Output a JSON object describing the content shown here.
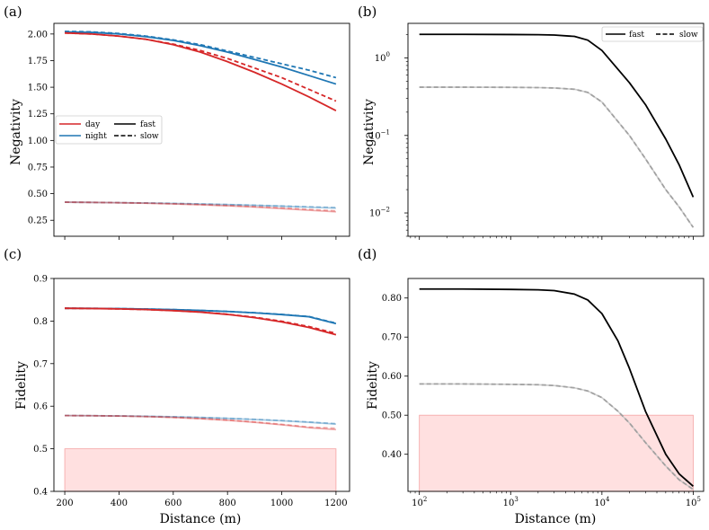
{
  "colors": {
    "day": "#d62728",
    "night": "#1f77b4",
    "fast": "#000000",
    "slow": "#999999",
    "shade": "#ffcccc"
  },
  "chart_data": [
    {
      "panel": "(a)",
      "type": "line",
      "xlabel": "",
      "ylabel": "Negativity",
      "xlim": [
        160,
        1250
      ],
      "ylim": [
        0.1,
        2.1
      ],
      "xticks": [
        200,
        400,
        600,
        800,
        1000,
        1200
      ],
      "xtick_labels": [],
      "yticks": [
        0.25,
        0.5,
        0.75,
        1.0,
        1.25,
        1.5,
        1.75,
        2.0
      ],
      "ytick_labels": [
        "0.25",
        "0.50",
        "0.75",
        "1.00",
        "1.25",
        "1.50",
        "1.75",
        "2.00"
      ],
      "legend": {
        "placement": "center-left",
        "entries": [
          "day",
          "night",
          "fast",
          "slow"
        ]
      },
      "x": [
        200,
        300,
        400,
        500,
        600,
        700,
        800,
        900,
        1000,
        1100,
        1200
      ],
      "series": [
        {
          "name": "night fast",
          "color": "night",
          "style": "solid",
          "values": [
            2.02,
            2.015,
            2.0,
            1.975,
            1.94,
            1.89,
            1.83,
            1.76,
            1.69,
            1.61,
            1.53
          ]
        },
        {
          "name": "night slow",
          "color": "night",
          "style": "dashed",
          "values": [
            2.025,
            2.02,
            2.005,
            1.98,
            1.945,
            1.9,
            1.84,
            1.78,
            1.72,
            1.66,
            1.59
          ]
        },
        {
          "name": "day fast",
          "color": "day",
          "style": "solid",
          "values": [
            2.01,
            2.0,
            1.98,
            1.95,
            1.9,
            1.83,
            1.74,
            1.64,
            1.53,
            1.41,
            1.28
          ]
        },
        {
          "name": "day slow",
          "color": "day",
          "style": "dashed",
          "values": [
            2.01,
            2.0,
            1.98,
            1.95,
            1.905,
            1.845,
            1.77,
            1.68,
            1.59,
            1.48,
            1.37
          ]
        },
        {
          "name": "night fast (low)",
          "color": "night",
          "style": "solid",
          "faded": true,
          "values": [
            0.42,
            0.418,
            0.415,
            0.412,
            0.408,
            0.403,
            0.397,
            0.39,
            0.382,
            0.373,
            0.365
          ]
        },
        {
          "name": "night slow (low)",
          "color": "night",
          "style": "dashed",
          "faded": true,
          "values": [
            0.42,
            0.418,
            0.416,
            0.413,
            0.409,
            0.404,
            0.398,
            0.392,
            0.385,
            0.377,
            0.37
          ]
        },
        {
          "name": "day fast (low)",
          "color": "day",
          "style": "solid",
          "faded": true,
          "values": [
            0.42,
            0.418,
            0.415,
            0.41,
            0.404,
            0.396,
            0.386,
            0.374,
            0.36,
            0.345,
            0.33
          ]
        },
        {
          "name": "day slow (low)",
          "color": "day",
          "style": "dashed",
          "faded": true,
          "values": [
            0.42,
            0.418,
            0.415,
            0.411,
            0.405,
            0.398,
            0.389,
            0.378,
            0.366,
            0.352,
            0.338
          ]
        }
      ]
    },
    {
      "panel": "(b)",
      "type": "line",
      "xscale": "log",
      "yscale": "log",
      "xlabel": "",
      "ylabel": "Negativity",
      "xlim": [
        75,
        130000
      ],
      "ylim": [
        0.005,
        2.8
      ],
      "xticks": [
        100,
        1000,
        10000,
        100000
      ],
      "xtick_labels": [],
      "yticks": [
        0.01,
        0.1,
        1
      ],
      "ytick_labels": [
        "10",
        "10",
        "10"
      ],
      "ytick_exponents": [
        "−2",
        "−1",
        "0"
      ],
      "legend": {
        "placement": "top-right",
        "entries": [
          "fast",
          "slow"
        ]
      },
      "x": [
        100,
        300,
        1000,
        2000,
        3000,
        5000,
        7000,
        10000,
        20000,
        30000,
        50000,
        70000,
        100000
      ],
      "series": [
        {
          "name": "fast",
          "color": "fast",
          "style": "solid",
          "values": [
            2.02,
            2.02,
            2.01,
            2.0,
            1.98,
            1.9,
            1.7,
            1.25,
            0.48,
            0.25,
            0.09,
            0.042,
            0.016
          ]
        },
        {
          "name": "slow",
          "color": "slow",
          "style": "dashed",
          "values": [
            0.42,
            0.42,
            0.418,
            0.415,
            0.41,
            0.395,
            0.36,
            0.27,
            0.1,
            0.05,
            0.02,
            0.012,
            0.0065
          ]
        }
      ]
    },
    {
      "panel": "(c)",
      "type": "line",
      "xlabel": "Distance (m)",
      "ylabel": "Fidelity",
      "xlim": [
        160,
        1250
      ],
      "ylim": [
        0.4,
        0.9
      ],
      "xticks": [
        200,
        400,
        600,
        800,
        1000,
        1200
      ],
      "xtick_labels": [
        "200",
        "400",
        "600",
        "800",
        "1000",
        "1200"
      ],
      "yticks": [
        0.4,
        0.5,
        0.6,
        0.7,
        0.8,
        0.9
      ],
      "ytick_labels": [
        "0.4",
        "0.5",
        "0.6",
        "0.7",
        "0.8",
        "0.9"
      ],
      "shaded_region": {
        "x": [
          200,
          1200
        ],
        "y": [
          0.4,
          0.5
        ]
      },
      "x": [
        200,
        300,
        400,
        500,
        600,
        700,
        800,
        900,
        1000,
        1100,
        1200
      ],
      "series": [
        {
          "name": "night fast",
          "color": "night",
          "style": "solid",
          "values": [
            0.83,
            0.8298,
            0.8292,
            0.8282,
            0.8268,
            0.825,
            0.8225,
            0.8193,
            0.8152,
            0.8102,
            0.794
          ]
        },
        {
          "name": "night slow",
          "color": "night",
          "style": "dashed",
          "values": [
            0.83,
            0.8298,
            0.8292,
            0.8282,
            0.8268,
            0.825,
            0.8226,
            0.8195,
            0.8155,
            0.8107,
            0.795
          ]
        },
        {
          "name": "day fast",
          "color": "day",
          "style": "solid",
          "values": [
            0.83,
            0.8295,
            0.8285,
            0.827,
            0.8245,
            0.821,
            0.8155,
            0.808,
            0.798,
            0.785,
            0.768
          ]
        },
        {
          "name": "day slow",
          "color": "day",
          "style": "dashed",
          "values": [
            0.83,
            0.8295,
            0.8285,
            0.827,
            0.8246,
            0.8212,
            0.816,
            0.809,
            0.7995,
            0.787,
            0.771
          ]
        },
        {
          "name": "night fast (low)",
          "color": "night",
          "style": "solid",
          "faded": true,
          "values": [
            0.578,
            0.5778,
            0.5772,
            0.5763,
            0.5751,
            0.5735,
            0.5714,
            0.5688,
            0.5658,
            0.5623,
            0.558
          ]
        },
        {
          "name": "night slow (low)",
          "color": "night",
          "style": "dashed",
          "faded": true,
          "values": [
            0.578,
            0.5778,
            0.5772,
            0.5763,
            0.5752,
            0.5737,
            0.5717,
            0.5692,
            0.5663,
            0.5629,
            0.559
          ]
        },
        {
          "name": "day fast (low)",
          "color": "day",
          "style": "solid",
          "faded": true,
          "values": [
            0.578,
            0.5777,
            0.5769,
            0.5756,
            0.5736,
            0.5708,
            0.567,
            0.5622,
            0.5564,
            0.5497,
            0.545
          ]
        },
        {
          "name": "day slow (low)",
          "color": "day",
          "style": "dashed",
          "faded": true,
          "values": [
            0.578,
            0.5777,
            0.577,
            0.5757,
            0.5738,
            0.5711,
            0.5675,
            0.5629,
            0.5574,
            0.551,
            0.548
          ]
        }
      ]
    },
    {
      "panel": "(d)",
      "type": "line",
      "xscale": "log",
      "xlabel": "Distance (m)",
      "ylabel": "Fidelity",
      "xlim": [
        75,
        130000
      ],
      "ylim": [
        0.305,
        0.85
      ],
      "xticks": [
        100,
        1000,
        10000,
        100000
      ],
      "xtick_labels": [
        "10",
        "10",
        "10",
        "10"
      ],
      "xtick_exponents": [
        "2",
        "3",
        "4",
        "5"
      ],
      "yticks": [
        0.4,
        0.5,
        0.6,
        0.7,
        0.8
      ],
      "ytick_labels": [
        "0.40",
        "0.50",
        "0.60",
        "0.70",
        "0.80"
      ],
      "shaded_region": {
        "x": [
          100,
          100000
        ],
        "y": [
          0.305,
          0.5
        ]
      },
      "x": [
        100,
        300,
        1000,
        2000,
        3000,
        5000,
        7000,
        10000,
        15000,
        20000,
        30000,
        50000,
        70000,
        100000
      ],
      "series": [
        {
          "name": "fast",
          "color": "fast",
          "style": "solid",
          "values": [
            0.823,
            0.823,
            0.822,
            0.821,
            0.819,
            0.81,
            0.795,
            0.76,
            0.69,
            0.62,
            0.51,
            0.4,
            0.35,
            0.318
          ]
        },
        {
          "name": "slow",
          "color": "slow",
          "style": "dashed",
          "values": [
            0.58,
            0.58,
            0.579,
            0.578,
            0.576,
            0.57,
            0.562,
            0.545,
            0.51,
            0.48,
            0.43,
            0.37,
            0.335,
            0.31
          ]
        }
      ]
    }
  ]
}
